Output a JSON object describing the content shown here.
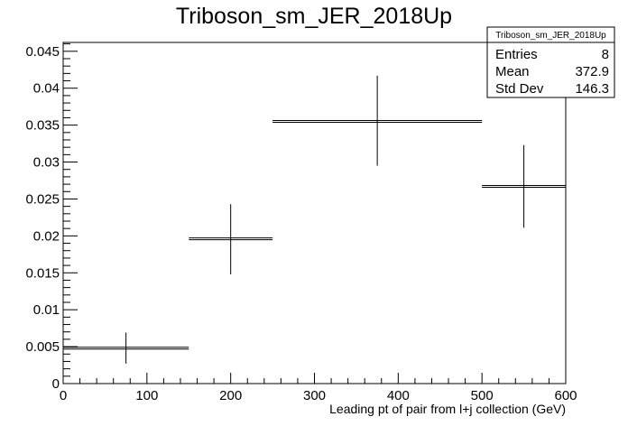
{
  "chart_data": {
    "type": "scatter",
    "title": "Triboson_sm_JER_2018Up",
    "xlabel": "Leading pt of pair from l+j collection (GeV)",
    "ylabel": "",
    "xlim": [
      0,
      600
    ],
    "ylim": [
      0,
      0.0462
    ],
    "grid": false,
    "x_ticks": [
      0,
      100,
      200,
      300,
      400,
      500,
      600
    ],
    "x_tick_labels": [
      "0",
      "100",
      "200",
      "300",
      "400",
      "500",
      "600"
    ],
    "y_ticks": [
      0,
      0.005,
      0.01,
      0.015,
      0.02,
      0.025,
      0.03,
      0.035,
      0.04,
      0.045
    ],
    "y_tick_labels": [
      "0",
      "0.005",
      "0.01",
      "0.015",
      "0.02",
      "0.025",
      "0.03",
      "0.035",
      "0.04",
      "0.045"
    ],
    "points": [
      {
        "x": 75,
        "xlow": 0,
        "xhigh": 150,
        "y": 0.0048,
        "ylow": 0.0027,
        "yhigh": 0.0069
      },
      {
        "x": 200,
        "xlow": 150,
        "xhigh": 250,
        "y": 0.0196,
        "ylow": 0.0148,
        "yhigh": 0.0243
      },
      {
        "x": 375,
        "xlow": 250,
        "xhigh": 500,
        "y": 0.0355,
        "ylow": 0.0295,
        "yhigh": 0.0417
      },
      {
        "x": 550,
        "xlow": 500,
        "xhigh": 600,
        "y": 0.0267,
        "ylow": 0.0211,
        "yhigh": 0.0323
      }
    ],
    "stats": {
      "title": "Triboson_sm_JER_2018Up",
      "rows": [
        {
          "label": "Entries",
          "value": "8"
        },
        {
          "label": "Mean",
          "value": "372.9"
        },
        {
          "label": "Std Dev",
          "value": "146.3"
        }
      ]
    }
  }
}
